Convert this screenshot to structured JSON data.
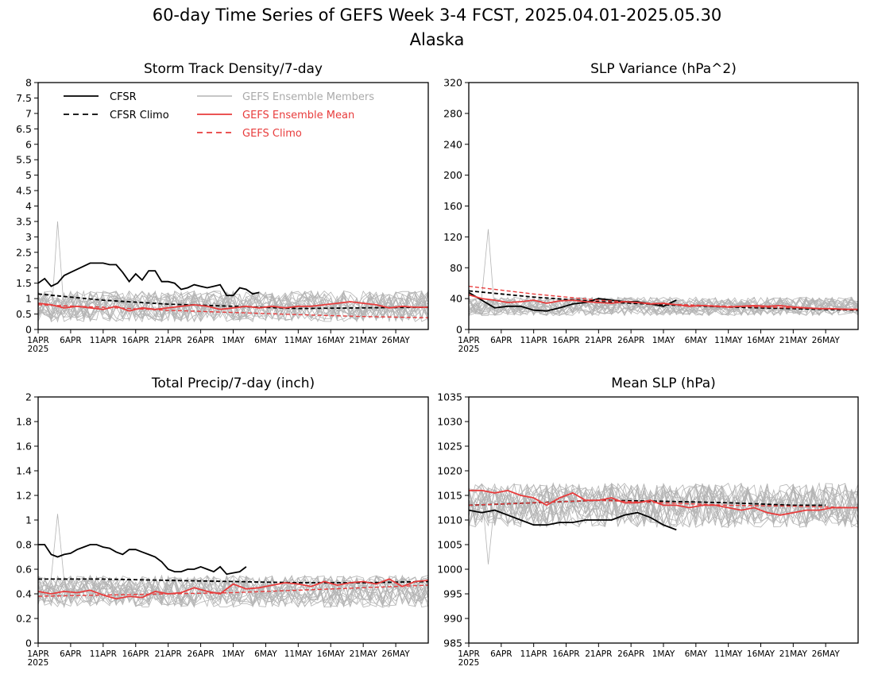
{
  "figure": {
    "title": "60-day Time Series of GEFS Week 3-4 FCST, 2025.04.01-2025.05.30",
    "subtitle": "Alaska"
  },
  "legend": {
    "entries": [
      {
        "label": "CFSR",
        "color": "#000000",
        "style": "solid"
      },
      {
        "label": "CFSR Climo",
        "color": "#000000",
        "style": "dashed"
      },
      {
        "label": "GEFS Ensemble Members",
        "color": "#b4b4b4",
        "style": "solid"
      },
      {
        "label": "GEFS Ensemble Mean",
        "color": "#e83c3c",
        "style": "solid"
      },
      {
        "label": "GEFS Climo",
        "color": "#e83c3c",
        "style": "dashed"
      }
    ]
  },
  "colors": {
    "cfsr": "#000000",
    "members": "#b4b4b4",
    "mean": "#e83c3c",
    "frame": "#000000"
  },
  "chart_data": [
    {
      "type": "line",
      "title": "Storm Track Density/7-day",
      "x_tick_labels": [
        "1APR",
        "6APR",
        "11APR",
        "16APR",
        "21APR",
        "26APR",
        "1MAY",
        "6MAY",
        "11MAY",
        "16MAY",
        "21MAY",
        "26MAY"
      ],
      "x_year_label": "2025",
      "x_range_days": [
        0,
        60
      ],
      "ylim": [
        0,
        8
      ],
      "y_ticks": [
        "0",
        "0.5",
        "1",
        "1.5",
        "2",
        "2.5",
        "3",
        "3.5",
        "4",
        "4.5",
        "5",
        "5.5",
        "6",
        "6.5",
        "7",
        "7.5",
        "8"
      ],
      "members": {
        "count": 20,
        "center": 0.75,
        "spread": 0.5,
        "spike": 3.5
      },
      "series": [
        {
          "name": "CFSR",
          "x": [
            0,
            1,
            2,
            3,
            4,
            5,
            6,
            7,
            8,
            9,
            10,
            11,
            12,
            13,
            14,
            15,
            16,
            17,
            18,
            19,
            20,
            21,
            22,
            23,
            24,
            25,
            26,
            27,
            28,
            29,
            30,
            31,
            32,
            33,
            34
          ],
          "values": [
            1.5,
            1.65,
            1.4,
            1.5,
            1.75,
            1.85,
            1.95,
            2.05,
            2.15,
            2.15,
            2.15,
            2.1,
            2.1,
            1.85,
            1.55,
            1.8,
            1.6,
            1.9,
            1.9,
            1.55,
            1.55,
            1.5,
            1.3,
            1.35,
            1.45,
            1.4,
            1.35,
            1.4,
            1.45,
            1.1,
            1.1,
            1.35,
            1.3,
            1.15,
            1.2
          ]
        },
        {
          "name": "CFSR Climo",
          "x": [
            0,
            10,
            20,
            30,
            40,
            50,
            60
          ],
          "values": [
            1.15,
            0.95,
            0.82,
            0.75,
            0.68,
            0.7,
            0.72
          ]
        },
        {
          "name": "GEFS Ensemble Mean",
          "x": [
            0,
            2,
            4,
            6,
            8,
            10,
            12,
            14,
            16,
            18,
            20,
            22,
            24,
            26,
            28,
            30,
            32,
            34,
            36,
            38,
            40,
            42,
            44,
            46,
            48,
            50,
            52,
            54,
            56,
            58,
            60
          ],
          "values": [
            0.85,
            0.8,
            0.7,
            0.75,
            0.7,
            0.65,
            0.75,
            0.6,
            0.7,
            0.65,
            0.7,
            0.75,
            0.8,
            0.75,
            0.65,
            0.7,
            0.75,
            0.7,
            0.75,
            0.7,
            0.75,
            0.75,
            0.8,
            0.85,
            0.9,
            0.85,
            0.8,
            0.7,
            0.75,
            0.72,
            0.72
          ]
        },
        {
          "name": "GEFS Climo",
          "x": [
            0,
            10,
            20,
            30,
            40,
            50,
            60
          ],
          "values": [
            0.8,
            0.72,
            0.62,
            0.55,
            0.48,
            0.42,
            0.38
          ]
        }
      ]
    },
    {
      "type": "line",
      "title": "SLP Variance (hPa^2)",
      "x_tick_labels": [
        "1APR",
        "6APR",
        "11APR",
        "16APR",
        "21APR",
        "26APR",
        "1MAY",
        "6MAY",
        "11MAY",
        "16MAY",
        "21MAY",
        "26MAY"
      ],
      "x_year_label": "2025",
      "x_range_days": [
        0,
        60
      ],
      "ylim": [
        0,
        320
      ],
      "y_ticks": [
        "0",
        "40",
        "80",
        "120",
        "160",
        "200",
        "240",
        "280",
        "320"
      ],
      "members": {
        "count": 20,
        "center": 30,
        "spread": 12,
        "spike": 130
      },
      "series": [
        {
          "name": "CFSR",
          "x": [
            0,
            2,
            4,
            6,
            8,
            10,
            12,
            14,
            16,
            18,
            20,
            22,
            24,
            26,
            28,
            30,
            32
          ],
          "values": [
            48,
            38,
            28,
            30,
            30,
            25,
            24,
            28,
            33,
            35,
            40,
            38,
            36,
            36,
            33,
            30,
            38
          ]
        },
        {
          "name": "CFSR Climo",
          "x": [
            0,
            10,
            20,
            30,
            40,
            50,
            60
          ],
          "values": [
            50,
            42,
            36,
            32,
            29,
            27,
            25
          ]
        },
        {
          "name": "GEFS Ensemble Mean",
          "x": [
            0,
            2,
            4,
            6,
            8,
            10,
            12,
            14,
            16,
            18,
            20,
            22,
            24,
            26,
            28,
            30,
            32,
            34,
            36,
            38,
            40,
            42,
            44,
            46,
            48,
            50,
            52,
            54,
            56,
            58,
            60
          ],
          "values": [
            45,
            40,
            38,
            35,
            36,
            38,
            34,
            37,
            38,
            36,
            35,
            34,
            36,
            35,
            33,
            34,
            32,
            30,
            31,
            30,
            29,
            30,
            31,
            30,
            31,
            29,
            28,
            27,
            27,
            26,
            26
          ]
        },
        {
          "name": "GEFS Climo",
          "x": [
            0,
            10,
            20,
            30,
            40,
            50,
            60
          ],
          "values": [
            56,
            46,
            38,
            33,
            30,
            28,
            26
          ]
        }
      ]
    },
    {
      "type": "line",
      "title": "Total Precip/7-day (inch)",
      "x_tick_labels": [
        "1APR",
        "6APR",
        "11APR",
        "16APR",
        "21APR",
        "26APR",
        "1MAY",
        "6MAY",
        "11MAY",
        "16MAY",
        "21MAY",
        "26MAY"
      ],
      "x_year_label": "2025",
      "x_range_days": [
        0,
        60
      ],
      "ylim": [
        0,
        2
      ],
      "y_ticks": [
        "0",
        "0.2",
        "0.4",
        "0.6",
        "0.8",
        "1",
        "1.2",
        "1.4",
        "1.6",
        "1.8",
        "2"
      ],
      "members": {
        "count": 20,
        "center": 0.42,
        "spread": 0.13,
        "spike": 1.05
      },
      "series": [
        {
          "name": "CFSR",
          "x": [
            0,
            1,
            2,
            3,
            4,
            5,
            6,
            7,
            8,
            9,
            10,
            11,
            12,
            13,
            14,
            15,
            16,
            17,
            18,
            19,
            20,
            21,
            22,
            23,
            24,
            25,
            26,
            27,
            28,
            29,
            30,
            31,
            32
          ],
          "values": [
            0.8,
            0.8,
            0.72,
            0.7,
            0.72,
            0.73,
            0.76,
            0.78,
            0.8,
            0.8,
            0.78,
            0.77,
            0.74,
            0.72,
            0.76,
            0.76,
            0.74,
            0.72,
            0.7,
            0.66,
            0.6,
            0.58,
            0.58,
            0.6,
            0.6,
            0.62,
            0.6,
            0.58,
            0.62,
            0.56,
            0.57,
            0.58,
            0.62
          ]
        },
        {
          "name": "CFSR Climo",
          "x": [
            0,
            10,
            20,
            30,
            40,
            50,
            60
          ],
          "values": [
            0.52,
            0.52,
            0.51,
            0.5,
            0.49,
            0.49,
            0.5
          ]
        },
        {
          "name": "GEFS Ensemble Mean",
          "x": [
            0,
            2,
            4,
            6,
            8,
            10,
            12,
            14,
            16,
            18,
            20,
            22,
            24,
            26,
            28,
            30,
            32,
            34,
            36,
            38,
            40,
            42,
            44,
            46,
            48,
            50,
            52,
            54,
            56,
            58,
            60
          ],
          "values": [
            0.42,
            0.4,
            0.42,
            0.41,
            0.43,
            0.39,
            0.36,
            0.38,
            0.37,
            0.42,
            0.4,
            0.41,
            0.45,
            0.42,
            0.4,
            0.48,
            0.44,
            0.45,
            0.47,
            0.49,
            0.48,
            0.46,
            0.5,
            0.47,
            0.49,
            0.5,
            0.48,
            0.52,
            0.46,
            0.5,
            0.51
          ]
        },
        {
          "name": "GEFS Climo",
          "x": [
            0,
            10,
            20,
            30,
            40,
            50,
            60
          ],
          "values": [
            0.38,
            0.39,
            0.4,
            0.41,
            0.43,
            0.45,
            0.47
          ]
        }
      ]
    },
    {
      "type": "line",
      "title": "Mean SLP (hPa)",
      "x_tick_labels": [
        "1APR",
        "6APR",
        "11APR",
        "16APR",
        "21APR",
        "26APR",
        "1MAY",
        "6MAY",
        "11MAY",
        "16MAY",
        "21MAY",
        "26MAY"
      ],
      "x_year_label": "2025",
      "x_range_days": [
        0,
        60
      ],
      "ylim": [
        985,
        1035
      ],
      "y_ticks": [
        "985",
        "990",
        "995",
        "1000",
        "1005",
        "1010",
        "1015",
        "1020",
        "1025",
        "1030",
        "1035"
      ],
      "members": {
        "count": 20,
        "center": 1013,
        "spread": 4.5,
        "spike": 1001
      },
      "series": [
        {
          "name": "CFSR",
          "x": [
            0,
            2,
            4,
            6,
            8,
            10,
            12,
            14,
            16,
            18,
            20,
            22,
            24,
            26,
            28,
            30,
            32
          ],
          "values": [
            1012,
            1011.5,
            1012,
            1011,
            1010,
            1009,
            1009,
            1009.5,
            1009.5,
            1010,
            1010,
            1010,
            1011,
            1011.5,
            1010.5,
            1009,
            1008
          ]
        },
        {
          "name": "CFSR Climo",
          "x": [
            0,
            10,
            20,
            30,
            40,
            50,
            55
          ],
          "values": [
            1013,
            1013.5,
            1014,
            1013.8,
            1013.5,
            1013,
            1013
          ]
        },
        {
          "name": "GEFS Ensemble Mean",
          "x": [
            0,
            2,
            4,
            6,
            8,
            10,
            12,
            14,
            16,
            18,
            20,
            22,
            24,
            26,
            28,
            30,
            32,
            34,
            36,
            38,
            40,
            42,
            44,
            46,
            48,
            50,
            52,
            54,
            56,
            58,
            60
          ],
          "values": [
            1016,
            1016,
            1015.5,
            1016,
            1015,
            1014.5,
            1013,
            1014.5,
            1015.5,
            1014,
            1014,
            1014.5,
            1013.5,
            1013.5,
            1014,
            1013,
            1013,
            1012.5,
            1013,
            1013,
            1012.5,
            1012,
            1012.5,
            1011.5,
            1011,
            1011.5,
            1012,
            1012,
            1012.5,
            1012.5,
            1012.5
          ]
        },
        {
          "name": "GEFS Climo",
          "x": [
            0,
            10,
            20,
            30,
            40,
            50,
            60
          ],
          "values": [
            1013,
            1013.5,
            1014,
            1013.5,
            1013,
            1012.8,
            1012.5
          ]
        }
      ]
    }
  ]
}
